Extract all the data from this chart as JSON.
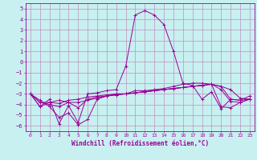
{
  "xlabel": "Windchill (Refroidissement éolien,°C)",
  "background_color": "#c8f0f0",
  "grid_color": "#c090c0",
  "line_color": "#990099",
  "x": [
    0,
    1,
    2,
    3,
    4,
    5,
    6,
    7,
    8,
    9,
    10,
    11,
    12,
    13,
    14,
    15,
    16,
    17,
    18,
    19,
    20,
    21,
    22,
    23
  ],
  "line1": [
    -3.0,
    -4.2,
    -3.5,
    -5.8,
    -4.1,
    -5.7,
    -3.0,
    -2.9,
    -2.7,
    -2.6,
    -0.4,
    4.4,
    4.8,
    4.4,
    3.5,
    1.0,
    -2.0,
    -2.2,
    -3.5,
    -2.8,
    -4.4,
    -3.5,
    -3.6,
    -3.2
  ],
  "line2": [
    -3.0,
    -4.2,
    -3.8,
    -3.6,
    -3.8,
    -4.3,
    -3.5,
    -3.3,
    -3.2,
    -3.1,
    -3.0,
    -2.9,
    -2.8,
    -2.7,
    -2.6,
    -2.5,
    -2.4,
    -2.3,
    -2.2,
    -2.1,
    -2.3,
    -2.6,
    -3.4,
    -3.5
  ],
  "line3": [
    -3.0,
    -3.8,
    -3.8,
    -3.9,
    -3.6,
    -3.5,
    -3.3,
    -3.2,
    -3.1,
    -3.0,
    -3.0,
    -2.9,
    -2.8,
    -2.7,
    -2.6,
    -2.5,
    -2.4,
    -2.3,
    -2.2,
    -2.1,
    -2.3,
    -3.5,
    -3.6,
    -3.5
  ],
  "line4": [
    -3.0,
    -3.8,
    -4.0,
    -4.2,
    -3.8,
    -3.8,
    -3.6,
    -3.4,
    -3.2,
    -3.1,
    -3.0,
    -2.9,
    -2.8,
    -2.7,
    -2.6,
    -2.5,
    -2.4,
    -2.3,
    -2.2,
    -2.1,
    -2.6,
    -3.7,
    -3.8,
    -3.5
  ],
  "line5": [
    -3.0,
    -3.6,
    -4.2,
    -5.2,
    -4.8,
    -5.9,
    -5.4,
    -3.5,
    -3.2,
    -3.0,
    -3.0,
    -2.7,
    -2.7,
    -2.6,
    -2.5,
    -2.3,
    -2.1,
    -2.0,
    -2.0,
    -2.1,
    -4.2,
    -4.3,
    -3.8,
    -3.5
  ],
  "ylim": [
    -6.5,
    5.5
  ],
  "yticks": [
    -6,
    -5,
    -4,
    -3,
    -2,
    -1,
    0,
    1,
    2,
    3,
    4,
    5
  ],
  "xticks": [
    0,
    1,
    2,
    3,
    4,
    5,
    6,
    7,
    8,
    9,
    10,
    11,
    12,
    13,
    14,
    15,
    16,
    17,
    18,
    19,
    20,
    21,
    22,
    23
  ]
}
